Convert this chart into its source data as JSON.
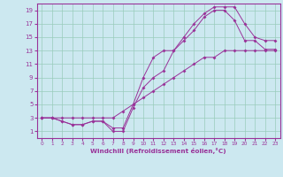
{
  "title": "",
  "xlabel": "Windchill (Refroidissement éolien,°C)",
  "ylabel": "",
  "bg_color": "#cce8f0",
  "grid_color": "#99ccbb",
  "line_color": "#993399",
  "spine_color": "#993399",
  "xlim": [
    -0.5,
    23.5
  ],
  "ylim": [
    0,
    20
  ],
  "xticks": [
    0,
    1,
    2,
    3,
    4,
    5,
    6,
    7,
    8,
    9,
    10,
    11,
    12,
    13,
    14,
    15,
    16,
    17,
    18,
    19,
    20,
    21,
    22,
    23
  ],
  "yticks": [
    1,
    3,
    5,
    7,
    9,
    11,
    13,
    15,
    17,
    19
  ],
  "series1_x": [
    0,
    1,
    2,
    3,
    4,
    5,
    6,
    7,
    8,
    9,
    10,
    11,
    12,
    13,
    14,
    15,
    16,
    17,
    18,
    19,
    20,
    21,
    22,
    23
  ],
  "series1_y": [
    3,
    3,
    3,
    3,
    3,
    3,
    3,
    3,
    4,
    5,
    6,
    7,
    8,
    9,
    10,
    11,
    12,
    12,
    13,
    13,
    13,
    13,
    13,
    13
  ],
  "series2_x": [
    0,
    1,
    2,
    3,
    4,
    5,
    6,
    7,
    8,
    9,
    10,
    11,
    12,
    13,
    14,
    15,
    16,
    17,
    18,
    19,
    20,
    21,
    22,
    23
  ],
  "series2_y": [
    3,
    3,
    2.5,
    2,
    2,
    2.5,
    2.5,
    1,
    1,
    4.5,
    7.5,
    9,
    10,
    13,
    14.5,
    16,
    18,
    19,
    19,
    17.5,
    14.5,
    14.5,
    13.2,
    13.2
  ],
  "series3_x": [
    0,
    1,
    2,
    3,
    4,
    5,
    6,
    7,
    8,
    9,
    10,
    11,
    12,
    13,
    14,
    15,
    16,
    17,
    18,
    19,
    20,
    21,
    22,
    23
  ],
  "series3_y": [
    3,
    3,
    2.5,
    2,
    2,
    2.5,
    2.5,
    1.5,
    1.5,
    5,
    9,
    12,
    13,
    13,
    15,
    17,
    18.5,
    19.5,
    19.5,
    19.5,
    17,
    15,
    14.5,
    14.5
  ]
}
